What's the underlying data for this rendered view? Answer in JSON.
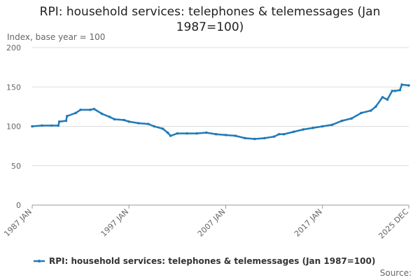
{
  "chart_data": {
    "type": "line",
    "title": "RPI: household services: telephones & telemessages (Jan 1987=100)",
    "y_label": "Index, base year = 100",
    "source": "Source:",
    "x": [
      1987.0,
      1988.0,
      1989.0,
      1989.7,
      1989.8,
      1990.5,
      1990.6,
      1991.5,
      1992.0,
      1993.0,
      1993.4,
      1994.2,
      1995.0,
      1995.5,
      1996.5,
      1997.0,
      1998.0,
      1999.0,
      1999.6,
      2000.5,
      2001.0,
      2001.3,
      2002.0,
      2003.0,
      2004.0,
      2005.0,
      2006.0,
      2007.0,
      2008.0,
      2009.0,
      2010.0,
      2011.0,
      2012.0,
      2012.5,
      2013.0,
      2014.0,
      2015.0,
      2016.0,
      2017.0,
      2018.0,
      2019.0,
      2020.0,
      2021.0,
      2022.0,
      2022.5,
      2023.2,
      2023.7,
      2024.2,
      2024.5,
      2025.0,
      2025.2,
      2025.917
    ],
    "series": [
      {
        "name": "RPI: household services: telephones & telemessages (Jan 1987=100)",
        "color": "#1f7ab8",
        "values": [
          100,
          101,
          101,
          101,
          106,
          107,
          113,
          117,
          121,
          121,
          122,
          116,
          112,
          109,
          108,
          106,
          104,
          103,
          100,
          97,
          92,
          88,
          91,
          91,
          91,
          92,
          90,
          89,
          88,
          85,
          84,
          85,
          87,
          90,
          90,
          93,
          96,
          98,
          100,
          102,
          107,
          110,
          117,
          120,
          125,
          137,
          134,
          145,
          145,
          146,
          153,
          152
        ]
      }
    ],
    "xlim": [
      1987.0,
      2025.917
    ],
    "xticks": [
      {
        "value": 1987.0,
        "label": "1987 JAN"
      },
      {
        "value": 1997.0,
        "label": "1997 JAN"
      },
      {
        "value": 2007.0,
        "label": "2007 JAN"
      },
      {
        "value": 2017.0,
        "label": "2017 JAN"
      },
      {
        "value": 2025.917,
        "label": "2025 DEC"
      }
    ],
    "ylim": [
      0,
      200
    ],
    "yticks": [
      0,
      50,
      100,
      150,
      200
    ],
    "grid": true
  }
}
